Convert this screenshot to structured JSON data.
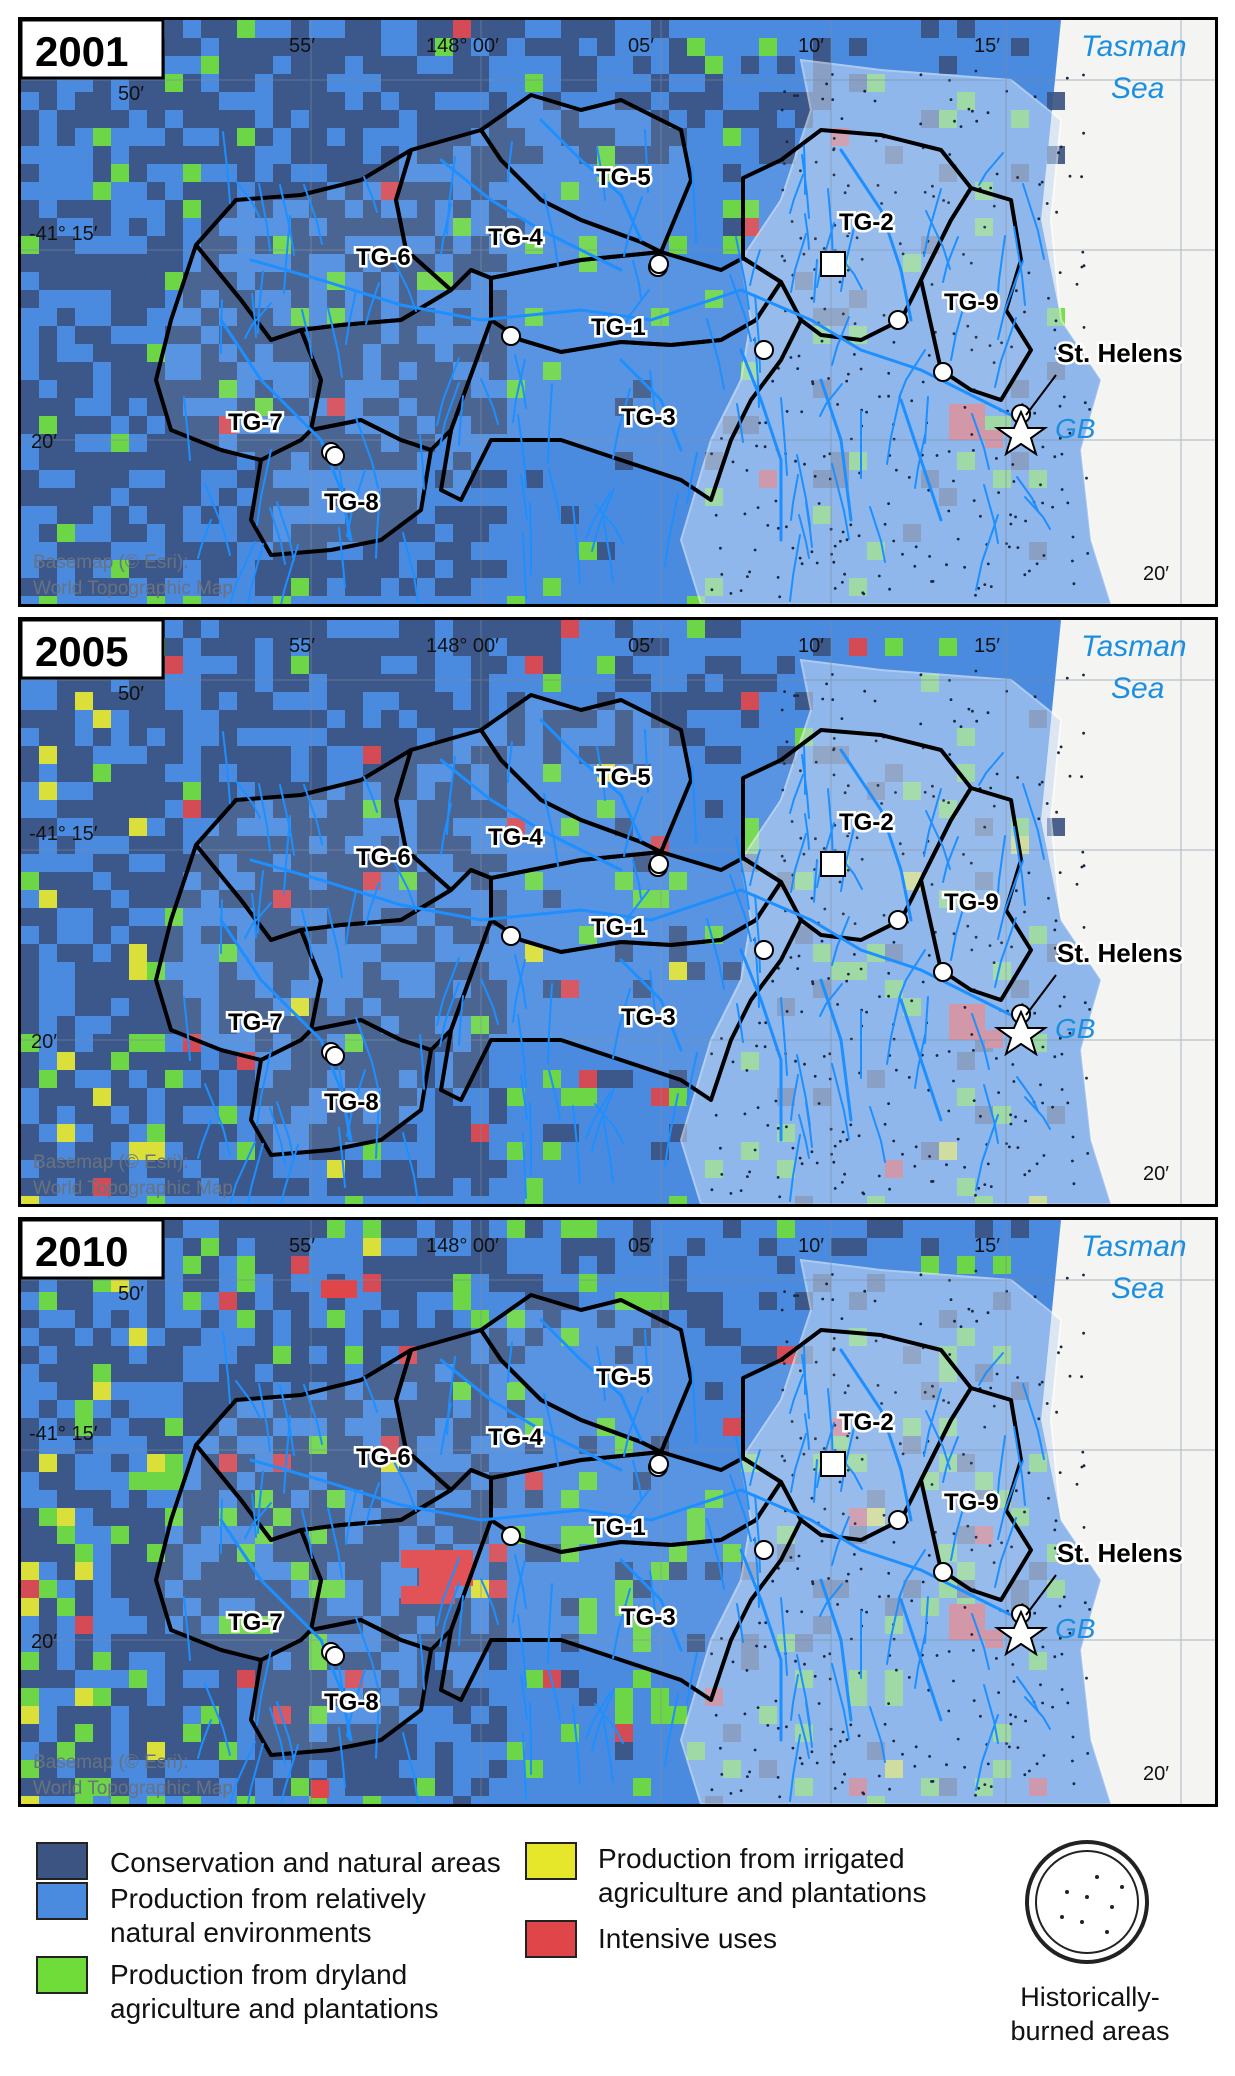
{
  "panels": [
    {
      "year": "2001",
      "extent": "low"
    },
    {
      "year": "2005",
      "extent": "mid"
    },
    {
      "year": "2010",
      "extent": "high"
    }
  ],
  "map_text": {
    "sea_line1": "Tasman",
    "sea_line2": "Sea",
    "town": "St. Helens",
    "bay": "GB",
    "lat_-41_15": "-41° 15′",
    "lat_20": "20′",
    "lat_50": "50′",
    "lon_55": "55′",
    "lon_148_00": "148° 00′",
    "lon_05": "05′",
    "lon_10": "10′",
    "lon_15": "15′",
    "lon_20": "20′",
    "credit_line1": "Basemap (© Esri):",
    "credit_line2": "World Topographic Map",
    "catchments": [
      "TG-1",
      "TG-2",
      "TG-3",
      "TG-4",
      "TG-5",
      "TG-6",
      "TG-7",
      "TG-8",
      "TG-9"
    ]
  },
  "legend": {
    "items": [
      {
        "key": "conservation",
        "label": "Conservation and natural areas",
        "color": "#3b5482"
      },
      {
        "key": "relatively_natural",
        "label_line1": "Production from relatively",
        "label_line2": "natural environments",
        "color": "#4a8be0"
      },
      {
        "key": "dryland",
        "label_line1": "Production from dryland",
        "label_line2": "agriculture and plantations",
        "color": "#6fdc3a"
      },
      {
        "key": "irrigated",
        "label_line1": "Production from irrigated",
        "label_line2": "agriculture and plantations",
        "color": "#e6e62a"
      },
      {
        "key": "intensive",
        "label": "Intensive uses",
        "color": "#e0454a"
      }
    ],
    "burned_line1": "Historically-",
    "burned_line2": "burned areas"
  }
}
